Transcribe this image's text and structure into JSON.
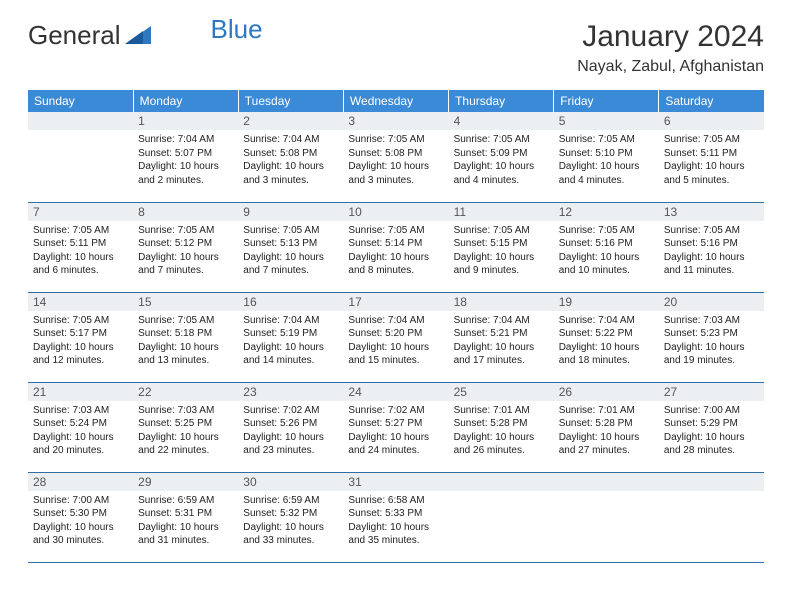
{
  "logo": {
    "part1": "General",
    "part2": "Blue"
  },
  "title": "January 2024",
  "location": "Nayak, Zabul, Afghanistan",
  "colors": {
    "headerBg": "#3b8ad8",
    "headerText": "#ffffff",
    "dayNumBg": "#eceff1",
    "rowBorder": "#2f6fa8",
    "logoBlue": "#2e78c2"
  },
  "weekdays": [
    "Sunday",
    "Monday",
    "Tuesday",
    "Wednesday",
    "Thursday",
    "Friday",
    "Saturday"
  ],
  "weeks": [
    [
      {
        "n": "",
        "sr": "",
        "ss": "",
        "dl": ""
      },
      {
        "n": "1",
        "sr": "7:04 AM",
        "ss": "5:07 PM",
        "dl": "10 hours and 2 minutes."
      },
      {
        "n": "2",
        "sr": "7:04 AM",
        "ss": "5:08 PM",
        "dl": "10 hours and 3 minutes."
      },
      {
        "n": "3",
        "sr": "7:05 AM",
        "ss": "5:08 PM",
        "dl": "10 hours and 3 minutes."
      },
      {
        "n": "4",
        "sr": "7:05 AM",
        "ss": "5:09 PM",
        "dl": "10 hours and 4 minutes."
      },
      {
        "n": "5",
        "sr": "7:05 AM",
        "ss": "5:10 PM",
        "dl": "10 hours and 4 minutes."
      },
      {
        "n": "6",
        "sr": "7:05 AM",
        "ss": "5:11 PM",
        "dl": "10 hours and 5 minutes."
      }
    ],
    [
      {
        "n": "7",
        "sr": "7:05 AM",
        "ss": "5:11 PM",
        "dl": "10 hours and 6 minutes."
      },
      {
        "n": "8",
        "sr": "7:05 AM",
        "ss": "5:12 PM",
        "dl": "10 hours and 7 minutes."
      },
      {
        "n": "9",
        "sr": "7:05 AM",
        "ss": "5:13 PM",
        "dl": "10 hours and 7 minutes."
      },
      {
        "n": "10",
        "sr": "7:05 AM",
        "ss": "5:14 PM",
        "dl": "10 hours and 8 minutes."
      },
      {
        "n": "11",
        "sr": "7:05 AM",
        "ss": "5:15 PM",
        "dl": "10 hours and 9 minutes."
      },
      {
        "n": "12",
        "sr": "7:05 AM",
        "ss": "5:16 PM",
        "dl": "10 hours and 10 minutes."
      },
      {
        "n": "13",
        "sr": "7:05 AM",
        "ss": "5:16 PM",
        "dl": "10 hours and 11 minutes."
      }
    ],
    [
      {
        "n": "14",
        "sr": "7:05 AM",
        "ss": "5:17 PM",
        "dl": "10 hours and 12 minutes."
      },
      {
        "n": "15",
        "sr": "7:05 AM",
        "ss": "5:18 PM",
        "dl": "10 hours and 13 minutes."
      },
      {
        "n": "16",
        "sr": "7:04 AM",
        "ss": "5:19 PM",
        "dl": "10 hours and 14 minutes."
      },
      {
        "n": "17",
        "sr": "7:04 AM",
        "ss": "5:20 PM",
        "dl": "10 hours and 15 minutes."
      },
      {
        "n": "18",
        "sr": "7:04 AM",
        "ss": "5:21 PM",
        "dl": "10 hours and 17 minutes."
      },
      {
        "n": "19",
        "sr": "7:04 AM",
        "ss": "5:22 PM",
        "dl": "10 hours and 18 minutes."
      },
      {
        "n": "20",
        "sr": "7:03 AM",
        "ss": "5:23 PM",
        "dl": "10 hours and 19 minutes."
      }
    ],
    [
      {
        "n": "21",
        "sr": "7:03 AM",
        "ss": "5:24 PM",
        "dl": "10 hours and 20 minutes."
      },
      {
        "n": "22",
        "sr": "7:03 AM",
        "ss": "5:25 PM",
        "dl": "10 hours and 22 minutes."
      },
      {
        "n": "23",
        "sr": "7:02 AM",
        "ss": "5:26 PM",
        "dl": "10 hours and 23 minutes."
      },
      {
        "n": "24",
        "sr": "7:02 AM",
        "ss": "5:27 PM",
        "dl": "10 hours and 24 minutes."
      },
      {
        "n": "25",
        "sr": "7:01 AM",
        "ss": "5:28 PM",
        "dl": "10 hours and 26 minutes."
      },
      {
        "n": "26",
        "sr": "7:01 AM",
        "ss": "5:28 PM",
        "dl": "10 hours and 27 minutes."
      },
      {
        "n": "27",
        "sr": "7:00 AM",
        "ss": "5:29 PM",
        "dl": "10 hours and 28 minutes."
      }
    ],
    [
      {
        "n": "28",
        "sr": "7:00 AM",
        "ss": "5:30 PM",
        "dl": "10 hours and 30 minutes."
      },
      {
        "n": "29",
        "sr": "6:59 AM",
        "ss": "5:31 PM",
        "dl": "10 hours and 31 minutes."
      },
      {
        "n": "30",
        "sr": "6:59 AM",
        "ss": "5:32 PM",
        "dl": "10 hours and 33 minutes."
      },
      {
        "n": "31",
        "sr": "6:58 AM",
        "ss": "5:33 PM",
        "dl": "10 hours and 35 minutes."
      },
      {
        "n": "",
        "sr": "",
        "ss": "",
        "dl": ""
      },
      {
        "n": "",
        "sr": "",
        "ss": "",
        "dl": ""
      },
      {
        "n": "",
        "sr": "",
        "ss": "",
        "dl": ""
      }
    ]
  ],
  "labels": {
    "sunrise": "Sunrise: ",
    "sunset": "Sunset: ",
    "daylight": "Daylight: "
  }
}
